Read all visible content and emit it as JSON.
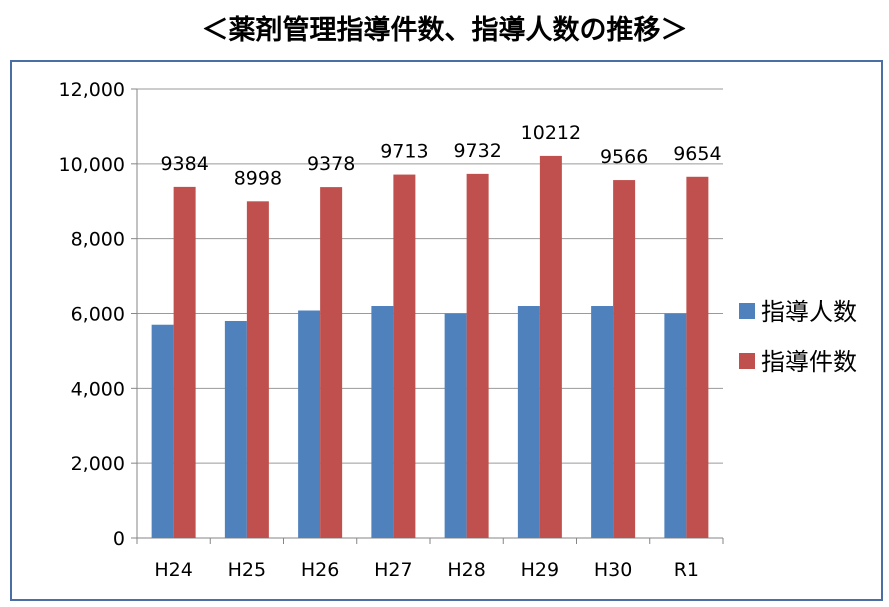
{
  "chart_data": {
    "type": "bar",
    "title": "＜薬剤管理指導件数、指導人数の推移＞",
    "categories": [
      "H24",
      "H25",
      "H26",
      "H27",
      "H28",
      "H29",
      "H30",
      "R1"
    ],
    "ylim": [
      0,
      12000
    ],
    "yticks": [
      0,
      2000,
      4000,
      6000,
      8000,
      10000,
      12000
    ],
    "ytick_labels": [
      "0",
      "2,000",
      "4,000",
      "6,000",
      "8,000",
      "10,000",
      "12,000"
    ],
    "grid": true,
    "legend_position": "right",
    "series": [
      {
        "name": "指導人数",
        "color": "#4f81bd",
        "values": [
          5700,
          5800,
          6080,
          6200,
          6000,
          6200,
          6200,
          6000
        ],
        "labels": null
      },
      {
        "name": "指導件数",
        "color": "#c0504d",
        "values": [
          9384,
          8998,
          9378,
          9713,
          9732,
          10212,
          9566,
          9654
        ],
        "labels": [
          "9384",
          "8998",
          "9378",
          "9713",
          "9732",
          "10212",
          "9566",
          "9654"
        ]
      }
    ]
  }
}
